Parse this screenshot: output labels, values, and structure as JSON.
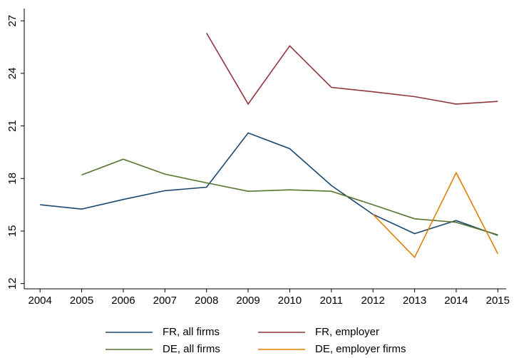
{
  "chart_data": {
    "type": "line",
    "x": [
      2004,
      2005,
      2006,
      2007,
      2008,
      2009,
      2010,
      2011,
      2012,
      2013,
      2014,
      2015
    ],
    "series": [
      {
        "name": "FR, all firms",
        "color": "#1a476f",
        "values": [
          16.5,
          16.25,
          16.8,
          17.3,
          17.5,
          20.6,
          19.7,
          17.6,
          15.95,
          14.85,
          15.6,
          14.75
        ]
      },
      {
        "name": "FR, employer",
        "color": "#90353b",
        "values": [
          null,
          null,
          null,
          null,
          26.3,
          22.25,
          25.57,
          23.2,
          22.95,
          22.67,
          22.25,
          22.4
        ]
      },
      {
        "name": "DE, all firms",
        "color": "#55752f",
        "values": [
          null,
          18.2,
          19.1,
          18.25,
          17.75,
          17.27,
          17.35,
          17.27,
          16.5,
          15.7,
          15.5,
          14.78
        ]
      },
      {
        "name": "DE, employer firms",
        "color": "#e37e00",
        "values": [
          null,
          null,
          null,
          null,
          null,
          null,
          null,
          null,
          15.95,
          13.5,
          18.33,
          13.7
        ]
      }
    ],
    "xlim": [
      2003.62,
      2015.2
    ],
    "xticks": [
      2004,
      2005,
      2006,
      2007,
      2008,
      2009,
      2010,
      2011,
      2012,
      2013,
      2014,
      2015
    ],
    "ylim": [
      11.7,
      27.7
    ],
    "yticks": [
      12,
      15,
      18,
      21,
      24,
      27
    ],
    "grid": false
  }
}
